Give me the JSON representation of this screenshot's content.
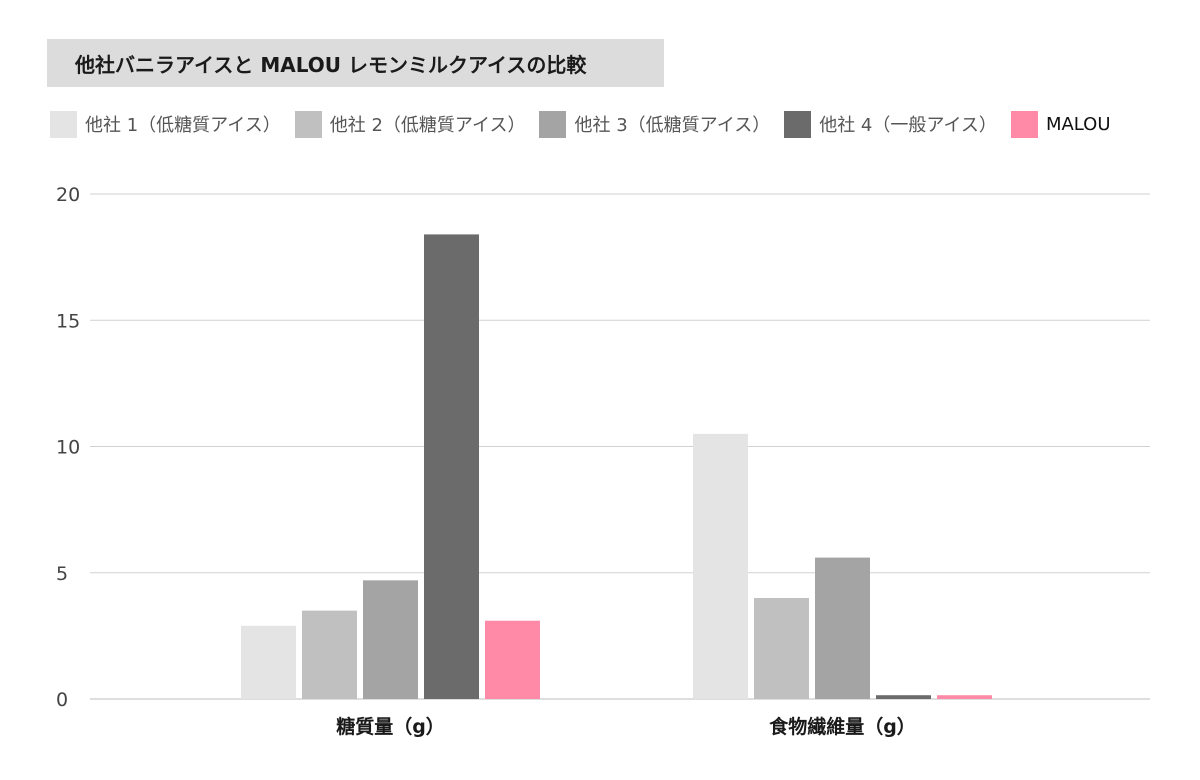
{
  "title": "他社バニラアイスと MALOU レモンミルクアイスの比較",
  "legend": [
    {
      "label": "他社 1（低糖質アイス）",
      "color": "#e4e4e4"
    },
    {
      "label": "他社 2（低糖質アイス）",
      "color": "#c0c0c0"
    },
    {
      "label": "他社 3（低糖質アイス）",
      "color": "#a4a4a4"
    },
    {
      "label": "他社 4（一般アイス）",
      "color": "#6b6b6b"
    },
    {
      "label": "MALOU",
      "color": "#ff8aa8"
    }
  ],
  "chart_data": {
    "type": "bar",
    "title": "他社バニラアイスと MALOU レモンミルクアイスの比較",
    "categories": [
      "糖質量（g）",
      "食物繊維量（g）"
    ],
    "series": [
      {
        "name": "他社 1（低糖質アイス）",
        "values": [
          2.9,
          10.5
        ]
      },
      {
        "name": "他社 2（低糖質アイス）",
        "values": [
          3.5,
          4.0
        ]
      },
      {
        "name": "他社 3（低糖質アイス）",
        "values": [
          4.7,
          5.6
        ]
      },
      {
        "name": "他社 4（一般アイス）",
        "values": [
          18.4,
          0.15
        ]
      },
      {
        "name": "MALOU",
        "values": [
          3.1,
          0.15
        ]
      }
    ],
    "ylim": [
      0,
      20
    ],
    "yticks": [
      "0",
      "5",
      "10",
      "15",
      "20"
    ],
    "grid": true,
    "legend_position": "top-left"
  }
}
